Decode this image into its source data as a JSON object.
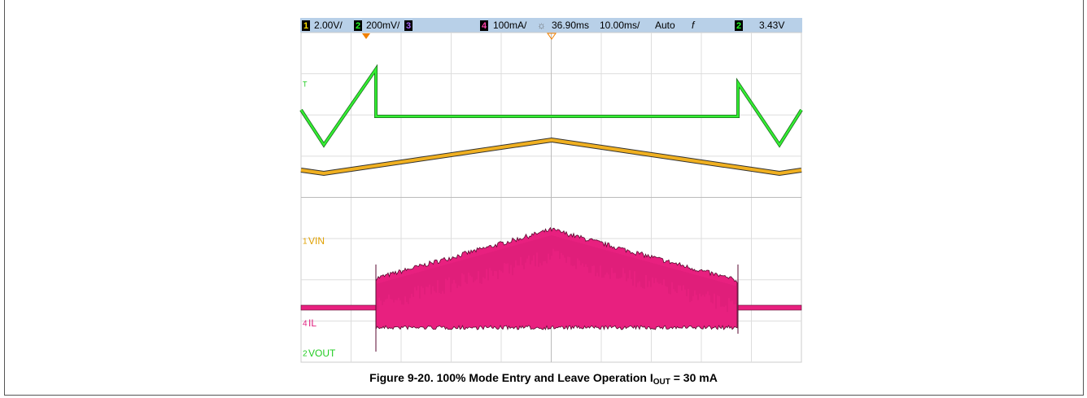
{
  "scope": {
    "header": {
      "ch1_num": "1",
      "ch1_scale": "2.00V/",
      "ch2_num": "2",
      "ch2_scale": "200mV/",
      "ch3_num": "3",
      "ch4_num": "4",
      "ch4_scale": "100mA/",
      "delay": "36.90ms",
      "timebase": "10.00ms/",
      "mode": "Auto",
      "trigger_symbol": "f",
      "trig_ch": "2",
      "trig_level": "3.43V"
    },
    "labels": {
      "trigger_marker": "T",
      "vin_num": "1",
      "vin": "VIN",
      "il_num": "4",
      "il": "IL",
      "vout_num": "2",
      "vout": "VOUT"
    }
  },
  "caption": {
    "main": "Figure 9-20. 100% Mode Entry and Leave Operation I",
    "sub": "OUT",
    "rest": " = 30 mA"
  }
}
